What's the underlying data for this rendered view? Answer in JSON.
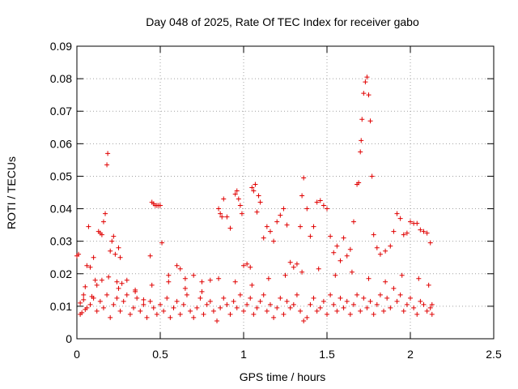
{
  "chart_data": {
    "type": "scatter",
    "title": "Day 048 of 2025, Rate Of TEC Index for receiver gabo",
    "xlabel": "GPS time / hours",
    "ylabel": "ROTI / TECUs",
    "xlim": [
      0,
      2.5
    ],
    "ylim": [
      0,
      0.09
    ],
    "xticks": [
      0,
      0.5,
      1,
      1.5,
      2,
      2.5
    ],
    "xtick_labels": [
      "0",
      "0.5",
      "1",
      "1.5",
      "2",
      "2.5"
    ],
    "yticks": [
      0,
      0.01,
      0.02,
      0.03,
      0.04,
      0.05,
      0.06,
      0.07,
      0.08,
      0.09
    ],
    "ytick_labels": [
      "0",
      "0.01",
      "0.02",
      "0.03",
      "0.04",
      "0.05",
      "0.06",
      "0.07",
      "0.08",
      "0.09"
    ],
    "grid": true,
    "marker": "+",
    "marker_color": "#e00000",
    "series": [
      {
        "values": [
          [
            0.0,
            0.0255
          ],
          [
            0.01,
            0.026
          ],
          [
            0.02,
            0.011
          ],
          [
            0.03,
            0.008
          ],
          [
            0.04,
            0.012
          ],
          [
            0.05,
            0.009
          ],
          [
            0.06,
            0.0225
          ],
          [
            0.07,
            0.0345
          ],
          [
            0.08,
            0.022
          ],
          [
            0.09,
            0.013
          ],
          [
            0.1,
            0.025
          ],
          [
            0.11,
            0.018
          ],
          [
            0.12,
            0.0165
          ],
          [
            0.13,
            0.033
          ],
          [
            0.14,
            0.0325
          ],
          [
            0.15,
            0.032
          ],
          [
            0.16,
            0.036
          ],
          [
            0.17,
            0.0385
          ],
          [
            0.18,
            0.0535
          ],
          [
            0.185,
            0.057
          ],
          [
            0.19,
            0.019
          ],
          [
            0.2,
            0.027
          ],
          [
            0.21,
            0.03
          ],
          [
            0.22,
            0.0315
          ],
          [
            0.23,
            0.026
          ],
          [
            0.24,
            0.0175
          ],
          [
            0.25,
            0.028
          ],
          [
            0.26,
            0.025
          ],
          [
            0.27,
            0.017
          ],
          [
            0.3,
            0.018
          ],
          [
            0.35,
            0.015
          ],
          [
            0.4,
            0.012
          ],
          [
            0.44,
            0.0255
          ],
          [
            0.45,
            0.042
          ],
          [
            0.46,
            0.0415
          ],
          [
            0.47,
            0.041
          ],
          [
            0.48,
            0.041
          ],
          [
            0.49,
            0.041
          ],
          [
            0.5,
            0.041
          ],
          [
            0.51,
            0.0295
          ],
          [
            0.55,
            0.0195
          ],
          [
            0.6,
            0.0225
          ],
          [
            0.62,
            0.0215
          ],
          [
            0.65,
            0.0185
          ],
          [
            0.7,
            0.0195
          ],
          [
            0.75,
            0.0175
          ],
          [
            0.8,
            0.018
          ],
          [
            0.85,
            0.04
          ],
          [
            0.86,
            0.0385
          ],
          [
            0.87,
            0.0375
          ],
          [
            0.88,
            0.043
          ],
          [
            0.9,
            0.0375
          ],
          [
            0.92,
            0.034
          ],
          [
            0.95,
            0.0445
          ],
          [
            0.96,
            0.0455
          ],
          [
            0.97,
            0.043
          ],
          [
            0.98,
            0.041
          ],
          [
            0.99,
            0.0385
          ],
          [
            1.0,
            0.0225
          ],
          [
            1.02,
            0.023
          ],
          [
            1.04,
            0.022
          ],
          [
            1.05,
            0.0465
          ],
          [
            1.06,
            0.0455
          ],
          [
            1.07,
            0.0475
          ],
          [
            1.08,
            0.039
          ],
          [
            1.09,
            0.044
          ],
          [
            1.1,
            0.042
          ],
          [
            1.12,
            0.031
          ],
          [
            1.14,
            0.0345
          ],
          [
            1.16,
            0.033
          ],
          [
            1.18,
            0.03
          ],
          [
            1.2,
            0.036
          ],
          [
            1.22,
            0.038
          ],
          [
            1.24,
            0.04
          ],
          [
            1.26,
            0.035
          ],
          [
            1.28,
            0.0235
          ],
          [
            1.3,
            0.022
          ],
          [
            1.32,
            0.023
          ],
          [
            1.34,
            0.0345
          ],
          [
            1.35,
            0.044
          ],
          [
            1.36,
            0.0495
          ],
          [
            1.38,
            0.04
          ],
          [
            1.4,
            0.0315
          ],
          [
            1.42,
            0.0345
          ],
          [
            1.44,
            0.042
          ],
          [
            1.46,
            0.0425
          ],
          [
            1.48,
            0.041
          ],
          [
            1.5,
            0.04
          ],
          [
            1.52,
            0.0315
          ],
          [
            1.54,
            0.0265
          ],
          [
            1.56,
            0.0285
          ],
          [
            1.58,
            0.024
          ],
          [
            1.6,
            0.031
          ],
          [
            1.62,
            0.0255
          ],
          [
            1.64,
            0.0275
          ],
          [
            1.66,
            0.036
          ],
          [
            1.68,
            0.0475
          ],
          [
            1.69,
            0.048
          ],
          [
            1.7,
            0.0575
          ],
          [
            1.705,
            0.061
          ],
          [
            1.71,
            0.0675
          ],
          [
            1.72,
            0.0755
          ],
          [
            1.73,
            0.079
          ],
          [
            1.74,
            0.0805
          ],
          [
            1.75,
            0.075
          ],
          [
            1.76,
            0.067
          ],
          [
            1.77,
            0.05
          ],
          [
            1.78,
            0.032
          ],
          [
            1.8,
            0.028
          ],
          [
            1.82,
            0.026
          ],
          [
            1.85,
            0.027
          ],
          [
            1.88,
            0.0285
          ],
          [
            1.9,
            0.033
          ],
          [
            1.92,
            0.0385
          ],
          [
            1.94,
            0.037
          ],
          [
            1.96,
            0.032
          ],
          [
            1.98,
            0.0325
          ],
          [
            2.0,
            0.036
          ],
          [
            2.02,
            0.0355
          ],
          [
            2.04,
            0.0355
          ],
          [
            2.06,
            0.0335
          ],
          [
            2.08,
            0.033
          ],
          [
            2.1,
            0.0325
          ],
          [
            2.12,
            0.0295
          ],
          [
            2.13,
            0.0105
          ],
          [
            0.02,
            0.0075
          ],
          [
            0.04,
            0.0135
          ],
          [
            0.06,
            0.0095
          ],
          [
            0.08,
            0.0105
          ],
          [
            0.1,
            0.0125
          ],
          [
            0.12,
            0.0085
          ],
          [
            0.14,
            0.0115
          ],
          [
            0.16,
            0.0095
          ],
          [
            0.18,
            0.0135
          ],
          [
            0.2,
            0.0065
          ],
          [
            0.22,
            0.0105
          ],
          [
            0.24,
            0.0125
          ],
          [
            0.26,
            0.0085
          ],
          [
            0.28,
            0.0115
          ],
          [
            0.3,
            0.0135
          ],
          [
            0.32,
            0.0075
          ],
          [
            0.34,
            0.0095
          ],
          [
            0.36,
            0.0125
          ],
          [
            0.38,
            0.0085
          ],
          [
            0.4,
            0.0105
          ],
          [
            0.42,
            0.0065
          ],
          [
            0.44,
            0.0115
          ],
          [
            0.46,
            0.0095
          ],
          [
            0.48,
            0.0075
          ],
          [
            0.5,
            0.0105
          ],
          [
            0.52,
            0.0085
          ],
          [
            0.54,
            0.0125
          ],
          [
            0.56,
            0.0065
          ],
          [
            0.58,
            0.0095
          ],
          [
            0.6,
            0.0115
          ],
          [
            0.62,
            0.0075
          ],
          [
            0.64,
            0.0105
          ],
          [
            0.66,
            0.0135
          ],
          [
            0.68,
            0.0085
          ],
          [
            0.7,
            0.0065
          ],
          [
            0.72,
            0.0095
          ],
          [
            0.74,
            0.0125
          ],
          [
            0.76,
            0.0075
          ],
          [
            0.78,
            0.0105
          ],
          [
            0.8,
            0.0115
          ],
          [
            0.82,
            0.0085
          ],
          [
            0.84,
            0.0055
          ],
          [
            0.86,
            0.0095
          ],
          [
            0.88,
            0.0125
          ],
          [
            0.9,
            0.0105
          ],
          [
            0.92,
            0.0075
          ],
          [
            0.94,
            0.0115
          ],
          [
            0.96,
            0.0095
          ],
          [
            0.98,
            0.0135
          ],
          [
            1.0,
            0.0085
          ],
          [
            1.02,
            0.0105
          ],
          [
            1.04,
            0.0125
          ],
          [
            1.06,
            0.0075
          ],
          [
            1.08,
            0.0095
          ],
          [
            1.1,
            0.0115
          ],
          [
            1.12,
            0.0135
          ],
          [
            1.14,
            0.0085
          ],
          [
            1.16,
            0.0105
          ],
          [
            1.18,
            0.0065
          ],
          [
            1.2,
            0.0095
          ],
          [
            1.22,
            0.0125
          ],
          [
            1.24,
            0.0075
          ],
          [
            1.26,
            0.0115
          ],
          [
            1.28,
            0.0095
          ],
          [
            1.3,
            0.0105
          ],
          [
            1.32,
            0.0135
          ],
          [
            1.34,
            0.0085
          ],
          [
            1.36,
            0.0055
          ],
          [
            1.38,
            0.0065
          ],
          [
            1.4,
            0.0105
          ],
          [
            1.42,
            0.0125
          ],
          [
            1.44,
            0.0085
          ],
          [
            1.46,
            0.0095
          ],
          [
            1.48,
            0.0115
          ],
          [
            1.5,
            0.0075
          ],
          [
            1.52,
            0.0135
          ],
          [
            1.54,
            0.0105
          ],
          [
            1.56,
            0.0085
          ],
          [
            1.58,
            0.0125
          ],
          [
            1.6,
            0.0095
          ],
          [
            1.62,
            0.0115
          ],
          [
            1.64,
            0.0075
          ],
          [
            1.66,
            0.0105
          ],
          [
            1.68,
            0.0135
          ],
          [
            1.7,
            0.0085
          ],
          [
            1.72,
            0.0125
          ],
          [
            1.74,
            0.0095
          ],
          [
            1.76,
            0.0115
          ],
          [
            1.78,
            0.0075
          ],
          [
            1.8,
            0.0105
          ],
          [
            1.82,
            0.0135
          ],
          [
            1.84,
            0.0085
          ],
          [
            1.86,
            0.0125
          ],
          [
            1.88,
            0.0095
          ],
          [
            1.9,
            0.0155
          ],
          [
            1.92,
            0.0115
          ],
          [
            1.94,
            0.0135
          ],
          [
            1.96,
            0.0085
          ],
          [
            1.98,
            0.0105
          ],
          [
            2.0,
            0.0125
          ],
          [
            2.02,
            0.0095
          ],
          [
            2.04,
            0.0075
          ],
          [
            2.06,
            0.0115
          ],
          [
            2.08,
            0.0105
          ],
          [
            2.1,
            0.0085
          ],
          [
            2.12,
            0.0095
          ],
          [
            2.13,
            0.0075
          ],
          [
            0.05,
            0.016
          ],
          [
            0.15,
            0.018
          ],
          [
            0.25,
            0.0155
          ],
          [
            0.35,
            0.0145
          ],
          [
            0.45,
            0.0165
          ],
          [
            0.55,
            0.0175
          ],
          [
            0.65,
            0.0155
          ],
          [
            0.75,
            0.0145
          ],
          [
            0.85,
            0.0185
          ],
          [
            0.95,
            0.0175
          ],
          [
            1.05,
            0.0165
          ],
          [
            1.15,
            0.0185
          ],
          [
            1.25,
            0.0195
          ],
          [
            1.35,
            0.0205
          ],
          [
            1.45,
            0.0215
          ],
          [
            1.55,
            0.0195
          ],
          [
            1.65,
            0.0205
          ],
          [
            1.75,
            0.0185
          ],
          [
            1.85,
            0.0175
          ],
          [
            1.95,
            0.0195
          ],
          [
            2.05,
            0.0185
          ],
          [
            2.11,
            0.0165
          ]
        ]
      }
    ]
  }
}
